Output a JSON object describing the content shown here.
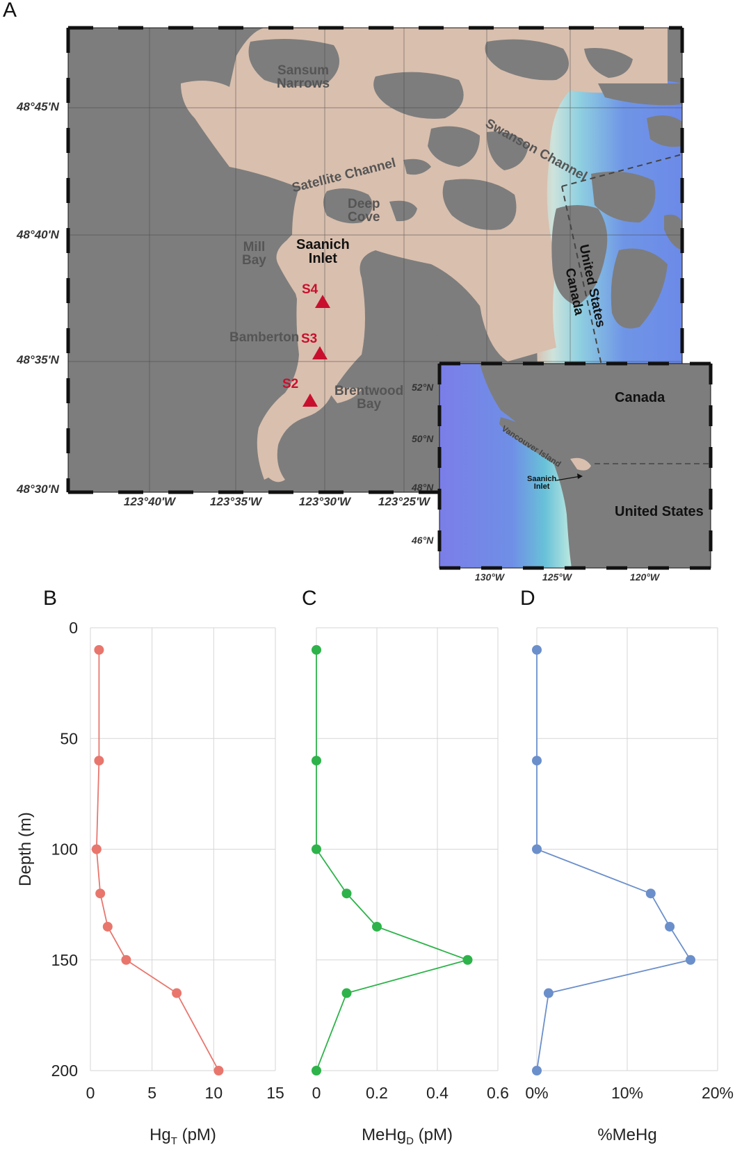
{
  "map": {
    "panel_label": "A",
    "lat_labels": [
      "48°45'N",
      "48°40'N",
      "48°35'N",
      "48°30'N"
    ],
    "lon_labels": [
      "123°40'W",
      "123°35'W",
      "123°30'W",
      "123°25'W"
    ],
    "places": {
      "sansum": "Sansum\nNarrows",
      "swanson": "Swanson Channel",
      "satellite": "Satellite Channel",
      "deep_cove": "Deep\nCove",
      "mill_bay": "Mill\nBay",
      "saanich": "Saanich\nInlet",
      "bamberton": "Bamberton",
      "brentwood": "Brentwood\nBay",
      "united_states": "United States",
      "canada": "Canada"
    },
    "sites": [
      "S4",
      "S3",
      "S2"
    ],
    "colors": {
      "land": "#7d7d7d",
      "water": "#d9bfae",
      "ocean": "#6f95e6",
      "site": "#c8102e"
    },
    "inset": {
      "lat_labels": [
        "52°N",
        "50°N",
        "48°N",
        "46°N"
      ],
      "lon_labels": [
        "130°W",
        "125°W",
        "120°W"
      ],
      "canada": "Canada",
      "united_states": "United States",
      "vancouver_island": "Vancouver Island",
      "saanich": "Saanich\nInlet"
    }
  },
  "chart_data": [
    {
      "type": "line",
      "panel": "B",
      "xlabel_main": "Hg",
      "xlabel_sub": "T",
      "xlabel_unit": "(pM)",
      "ylabel": "Depth (m)",
      "xlim": [
        0,
        15
      ],
      "ylim": [
        0,
        200
      ],
      "x_ticks": [
        "0",
        "5",
        "10",
        "15"
      ],
      "y_ticks": [
        "0",
        "50",
        "100",
        "150",
        "200"
      ],
      "depth": [
        10,
        60,
        100,
        120,
        135,
        150,
        165,
        200
      ],
      "values": [
        0.7,
        0.7,
        0.5,
        0.8,
        1.4,
        2.9,
        7.0,
        10.4
      ],
      "color": "#e8766d"
    },
    {
      "type": "line",
      "panel": "C",
      "xlabel_main": "MeHg",
      "xlabel_sub": "D",
      "xlabel_unit": "(pM)",
      "xlim": [
        0,
        0.6
      ],
      "ylim": [
        0,
        200
      ],
      "x_ticks": [
        "0",
        "0.2",
        "0.4",
        "0.6"
      ],
      "depth": [
        10,
        60,
        100,
        120,
        135,
        150,
        165,
        200
      ],
      "values": [
        0.0,
        0.0,
        0.0,
        0.1,
        0.2,
        0.5,
        0.1,
        0.0
      ],
      "color": "#2db34a"
    },
    {
      "type": "line",
      "panel": "D",
      "xlabel_main": "%MeHg",
      "xlabel_sub": "",
      "xlabel_unit": "",
      "xlim": [
        0,
        20
      ],
      "ylim": [
        0,
        200
      ],
      "x_ticks": [
        "0%",
        "10%",
        "20%"
      ],
      "depth": [
        10,
        60,
        100,
        120,
        135,
        150,
        165,
        200
      ],
      "values": [
        0,
        0,
        0,
        12.6,
        14.7,
        17.0,
        1.3,
        0
      ],
      "color": "#6b8fcb"
    }
  ]
}
